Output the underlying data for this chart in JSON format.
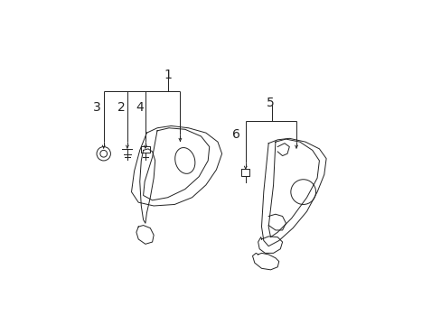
{
  "bg_color": "#ffffff",
  "line_color": "#222222",
  "line_width": 0.7,
  "fig_width": 4.89,
  "fig_height": 3.6,
  "dpi": 100
}
